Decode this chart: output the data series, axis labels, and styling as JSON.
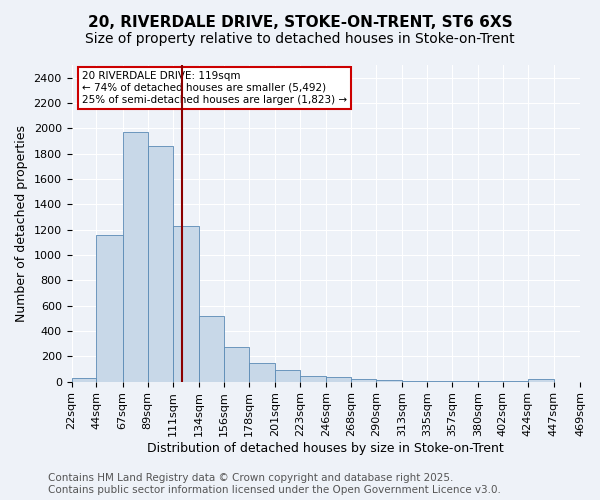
{
  "title_line1": "20, RIVERDALE DRIVE, STOKE-ON-TRENT, ST6 6XS",
  "title_line2": "Size of property relative to detached houses in Stoke-on-Trent",
  "xlabel": "Distribution of detached houses by size in Stoke-on-Trent",
  "ylabel": "Number of detached properties",
  "bar_values": [
    25,
    1160,
    1970,
    1860,
    1230,
    515,
    270,
    150,
    90,
    45,
    40,
    20,
    15,
    5,
    5,
    5,
    5,
    5,
    20
  ],
  "bin_edges": [
    22,
    44,
    67,
    89,
    111,
    134,
    156,
    178,
    201,
    223,
    246,
    268,
    290,
    313,
    335,
    357,
    380,
    402,
    424,
    447
  ],
  "tick_labels": [
    "22sqm",
    "44sqm",
    "67sqm",
    "89sqm",
    "111sqm",
    "134sqm",
    "156sqm",
    "178sqm",
    "201sqm",
    "223sqm",
    "246sqm",
    "268sqm",
    "290sqm",
    "313sqm",
    "335sqm",
    "357sqm",
    "380sqm",
    "402sqm",
    "424sqm",
    "447sqm",
    "469sqm"
  ],
  "bar_color": "#c8d8e8",
  "bar_edge_color": "#5a8ab5",
  "property_line_x": 119,
  "property_line_color": "#8b0000",
  "annotation_text": "20 RIVERDALE DRIVE: 119sqm\n← 74% of detached houses are smaller (5,492)\n25% of semi-detached houses are larger (1,823) →",
  "annotation_box_color": "#ffffff",
  "annotation_box_edge_color": "#cc0000",
  "ylim": [
    0,
    2500
  ],
  "yticks": [
    0,
    200,
    400,
    600,
    800,
    1000,
    1200,
    1400,
    1600,
    1800,
    2000,
    2200,
    2400
  ],
  "background_color": "#eef2f8",
  "grid_color": "#ffffff",
  "footer_text": "Contains HM Land Registry data © Crown copyright and database right 2025.\nContains public sector information licensed under the Open Government Licence v3.0.",
  "title_fontsize": 11,
  "subtitle_fontsize": 10,
  "axis_label_fontsize": 9,
  "tick_fontsize": 8,
  "footer_fontsize": 7.5
}
